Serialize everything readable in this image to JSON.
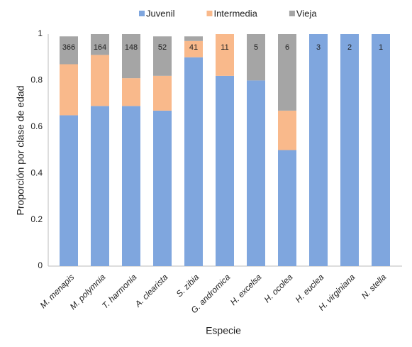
{
  "chart_data": {
    "type": "stacked_bar",
    "x_label": "Especie",
    "y_label": "Proporción por clase de edad",
    "categories": [
      "M. menapis",
      "M. polymnia",
      "T. harmonia",
      "A. clearista",
      "S. zibia",
      "G. andromica",
      "H. excelsa",
      "H. ocolea",
      "H. euclea",
      "H. virginiana",
      "N. stella"
    ],
    "series": [
      {
        "name": "Juvenil",
        "color": "#7fa6de",
        "values": [
          0.65,
          0.69,
          0.69,
          0.67,
          0.9,
          0.82,
          0.8,
          0.5,
          1,
          1,
          1
        ]
      },
      {
        "name": "Intermedia",
        "color": "#f9b98b",
        "values": [
          0.22,
          0.22,
          0.12,
          0.15,
          0.07,
          0.18,
          0,
          0.17,
          0,
          0,
          0
        ]
      },
      {
        "name": "Vieja",
        "color": "#a5a5a5",
        "values": [
          0.12,
          0.09,
          0.19,
          0.17,
          0.02,
          0,
          0.2,
          0.33,
          0,
          0,
          0
        ]
      }
    ],
    "sample_sizes": [
      366,
      164,
      148,
      52,
      41,
      11,
      5,
      6,
      3,
      2,
      1
    ],
    "ylim": [
      0,
      1
    ],
    "yticks": [
      0,
      0.2,
      0.4,
      0.6,
      0.8,
      1
    ],
    "legend": "top"
  }
}
